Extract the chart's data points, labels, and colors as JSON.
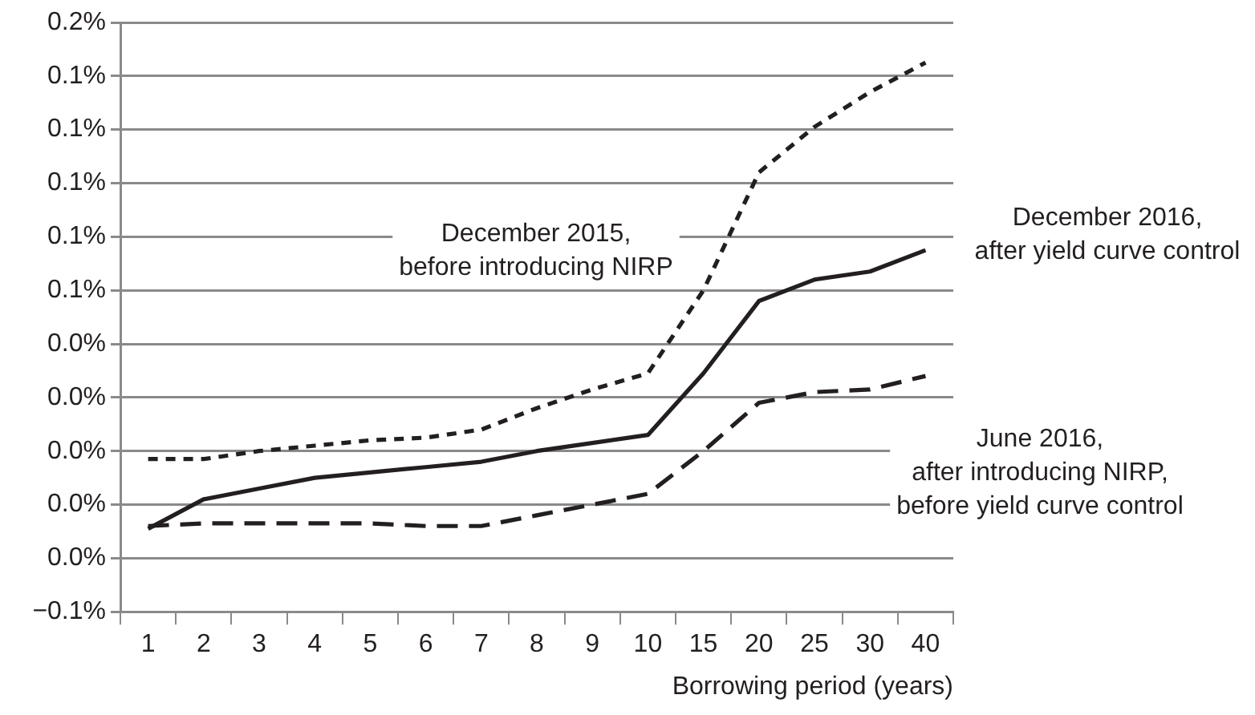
{
  "chart_data": {
    "type": "line",
    "xlabel": "Borrowing period (years)",
    "categories": [
      "1",
      "2",
      "3",
      "4",
      "5",
      "6",
      "7",
      "8",
      "9",
      "10",
      "15",
      "20",
      "25",
      "30",
      "40"
    ],
    "series": [
      {
        "name": "December 2015, before introducing NIRP",
        "color": "#231f20",
        "line_style": "dotted",
        "values": [
          -0.003,
          -0.003,
          0.0,
          0.002,
          0.004,
          0.005,
          0.008,
          0.016,
          0.023,
          0.029,
          0.06,
          0.104,
          0.121,
          0.134,
          0.145
        ]
      },
      {
        "name": "December 2016, after yield curve control",
        "color": "#231f20",
        "line_style": "solid",
        "values": [
          -0.029,
          -0.018,
          -0.014,
          -0.01,
          -0.008,
          -0.006,
          -0.004,
          0.0,
          0.003,
          0.006,
          0.029,
          0.056,
          0.064,
          0.067,
          0.075
        ]
      },
      {
        "name": "June 2016, after introducing NIRP, before yield curve control",
        "color": "#231f20",
        "line_style": "dashed",
        "values": [
          -0.028,
          -0.027,
          -0.027,
          -0.027,
          -0.027,
          -0.028,
          -0.028,
          -0.024,
          -0.02,
          -0.016,
          0.0,
          0.018,
          0.022,
          0.023,
          0.028
        ]
      }
    ],
    "ylim": [
      -0.06,
      0.16
    ],
    "yticks": [
      {
        "value": -0.06,
        "label": "−0.1%"
      },
      {
        "value": -0.04,
        "label": "0.0%"
      },
      {
        "value": -0.02,
        "label": "0.0%"
      },
      {
        "value": 0,
        "label": "0.0%"
      },
      {
        "value": 0.02,
        "label": "0.0%"
      },
      {
        "value": 0.04,
        "label": "0.0%"
      },
      {
        "value": 0.06,
        "label": "0.1%"
      },
      {
        "value": 0.08,
        "label": "0.1%"
      },
      {
        "value": 0.1,
        "label": "0.1%"
      },
      {
        "value": 0.12,
        "label": "0.1%"
      },
      {
        "value": 0.14,
        "label": "0.1%"
      },
      {
        "value": 0.16,
        "label": "0.2%"
      }
    ],
    "grid": "y",
    "legend": false,
    "marker": "none"
  }
}
